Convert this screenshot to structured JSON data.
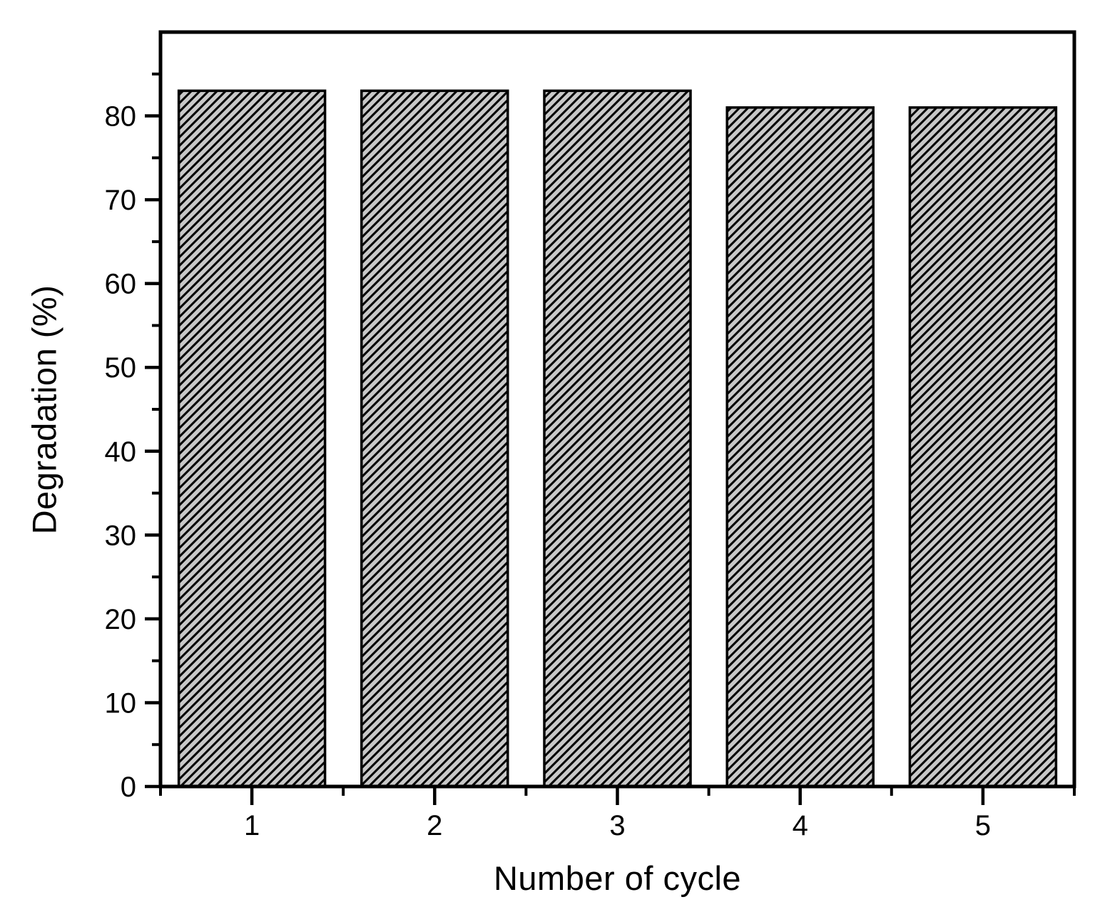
{
  "chart_data": {
    "type": "bar",
    "categories": [
      "1",
      "2",
      "3",
      "4",
      "5"
    ],
    "values": [
      83,
      83,
      83,
      81,
      81
    ],
    "xlabel": "Number of cycle",
    "ylabel": "Degradation (%)",
    "xlim": [
      0.5,
      5.5
    ],
    "ylim": [
      0,
      90
    ],
    "x_positions": [
      1,
      2,
      3,
      4,
      5
    ],
    "ytick_labels": [
      "0",
      "10",
      "20",
      "30",
      "40",
      "50",
      "60",
      "70",
      "80"
    ],
    "ytick_values": [
      0,
      10,
      20,
      30,
      40,
      50,
      60,
      70,
      80
    ],
    "ytick_minor_step": 5,
    "xtick_minor_step": 0.5,
    "bar_width": 0.8,
    "grid": false,
    "legend": null,
    "style": {
      "bar_fill": "#c8c8c8",
      "hatch": "diagonal-forward",
      "hatch_color": "#000000",
      "bar_border_color": "#000000",
      "axis_color": "#000000",
      "background": "#ffffff"
    }
  }
}
